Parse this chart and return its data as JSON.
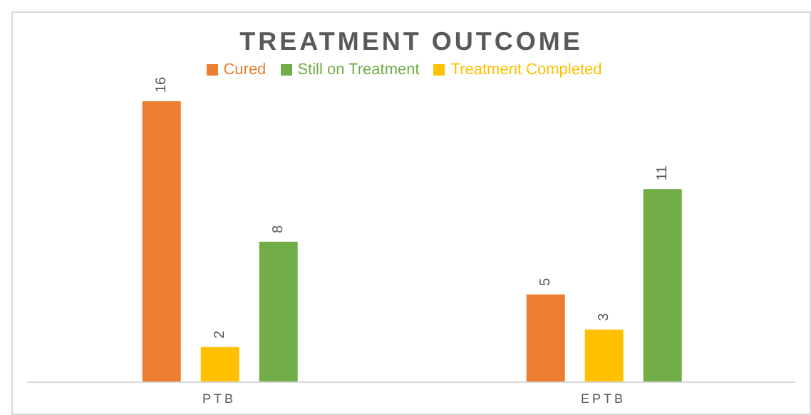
{
  "chart_data": {
    "type": "bar",
    "title": "TREATMENT OUTCOME",
    "categories": [
      "PTB",
      "EPTB"
    ],
    "series": [
      {
        "name": "Cured",
        "color": "#ed7d31",
        "values": [
          16,
          5
        ]
      },
      {
        "name": "Treatment Completed",
        "color": "#ffc000",
        "values": [
          2,
          3
        ]
      },
      {
        "name": "Still on Treatment",
        "color": "#70ad47",
        "values": [
          8,
          11
        ]
      }
    ],
    "data_labels": true,
    "legend": "top",
    "grid": false
  }
}
